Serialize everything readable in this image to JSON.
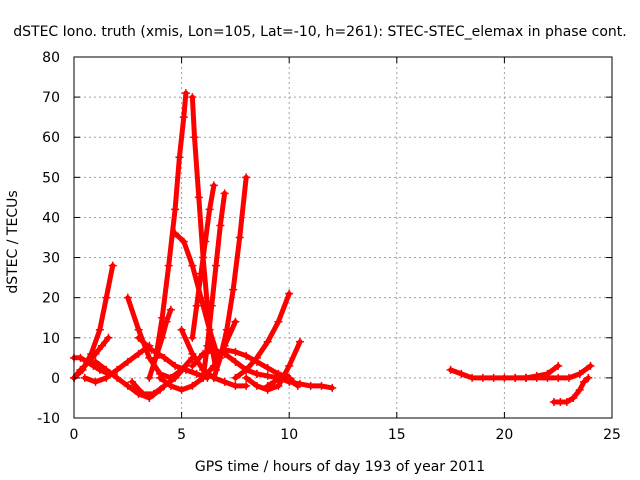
{
  "chart_data": {
    "type": "scatter",
    "title": "dSTEC Iono. truth (xmis, Lon=105, Lat=-10, h=261): STEC-STEC_elemax in phase cont.",
    "xlabel": "GPS time / hours of day 193 of year 2011",
    "ylabel": "dSTEC  / TECUs",
    "xlim": [
      0,
      25
    ],
    "ylim": [
      -10,
      80
    ],
    "x_ticks": [
      0,
      5,
      10,
      15,
      20,
      25
    ],
    "y_ticks": [
      -10,
      0,
      10,
      20,
      30,
      40,
      50,
      60,
      70,
      80
    ],
    "grid": true,
    "marker": "plus",
    "color": "#ff0000",
    "series": [
      {
        "x": [
          0.0,
          0.4,
          0.8,
          1.2,
          1.5,
          1.8
        ],
        "y": [
          0,
          2,
          6,
          12,
          20,
          28
        ]
      },
      {
        "x": [
          0.0,
          0.3,
          0.6,
          0.9,
          1.2,
          1.6
        ],
        "y": [
          5,
          5,
          4,
          3,
          2,
          1
        ]
      },
      {
        "x": [
          0.0,
          0.3,
          0.7,
          1.0,
          1.3,
          1.6
        ],
        "y": [
          0,
          2,
          4,
          6,
          8,
          10
        ]
      },
      {
        "x": [
          0.5,
          1.0,
          1.5,
          2.0,
          2.5,
          3.0,
          3.5
        ],
        "y": [
          0,
          -1,
          0,
          2,
          4,
          6,
          8
        ]
      },
      {
        "x": [
          2.5,
          3.0,
          3.5,
          4.0,
          4.5,
          5.0,
          5.5
        ],
        "y": [
          20,
          12,
          5,
          1,
          0,
          2,
          5
        ]
      },
      {
        "x": [
          2.7,
          3.2,
          3.7,
          4.2,
          4.7,
          5.2
        ],
        "y": [
          -1,
          -4,
          -4,
          -2,
          0,
          3
        ]
      },
      {
        "x": [
          1.0,
          1.5,
          2.0,
          2.5,
          3.0,
          3.5,
          4.0
        ],
        "y": [
          4,
          2,
          0,
          -2,
          -4,
          -5,
          -3
        ]
      },
      {
        "x": [
          3.0,
          3.6,
          4.2,
          4.7,
          5.2,
          5.7,
          6.2
        ],
        "y": [
          10,
          7,
          5,
          3,
          2,
          1,
          0
        ]
      },
      {
        "x": [
          3.5,
          3.8,
          4.1,
          4.3,
          4.5
        ],
        "y": [
          0,
          5,
          10,
          14,
          17
        ]
      },
      {
        "x": [
          3.8,
          4.1,
          4.4,
          4.7,
          4.9,
          5.1,
          5.2
        ],
        "y": [
          5,
          15,
          28,
          42,
          55,
          65,
          71
        ]
      },
      {
        "x": [
          4.7,
          5.1,
          5.5,
          5.9,
          6.3,
          6.7
        ],
        "y": [
          36,
          34,
          28,
          20,
          12,
          5
        ]
      },
      {
        "x": [
          5.5,
          5.6,
          5.8,
          6.0,
          6.2,
          6.4,
          6.6
        ],
        "y": [
          70,
          60,
          45,
          30,
          18,
          8,
          2
        ]
      },
      {
        "x": [
          5.5,
          5.7,
          5.9,
          6.1,
          6.3,
          6.5
        ],
        "y": [
          10,
          18,
          26,
          34,
          42,
          48
        ]
      },
      {
        "x": [
          6.0,
          6.2,
          6.4,
          6.6,
          6.8,
          7.0
        ],
        "y": [
          0,
          8,
          18,
          28,
          38,
          46
        ]
      },
      {
        "x": [
          6.5,
          6.8,
          7.1,
          7.4,
          7.7,
          8.0
        ],
        "y": [
          0,
          5,
          12,
          22,
          35,
          50
        ]
      },
      {
        "x": [
          4.0,
          4.5,
          5.0,
          5.5,
          6.0,
          6.5,
          7.0,
          7.5
        ],
        "y": [
          0,
          -2,
          -3,
          -2,
          0,
          3,
          8,
          14
        ]
      },
      {
        "x": [
          5.0,
          5.5,
          6.0,
          6.5,
          7.0,
          7.5,
          8.0
        ],
        "y": [
          12,
          6,
          2,
          0,
          -1,
          -2,
          -2
        ]
      },
      {
        "x": [
          5.5,
          6.0,
          6.5,
          7.0,
          7.5,
          8.0,
          8.5
        ],
        "y": [
          3,
          6,
          7,
          6,
          4,
          2,
          1
        ]
      },
      {
        "x": [
          7.0,
          7.5,
          8.0,
          8.5,
          9.0,
          9.5,
          10.0
        ],
        "y": [
          7,
          6.5,
          5.5,
          4,
          2.5,
          1,
          0
        ]
      },
      {
        "x": [
          7.5,
          8.0,
          8.5,
          9.0,
          9.5,
          10.0
        ],
        "y": [
          0,
          2,
          5,
          9,
          14,
          21
        ]
      },
      {
        "x": [
          8.0,
          8.5,
          9.0,
          9.5,
          10.0,
          10.5
        ],
        "y": [
          0,
          -2,
          -3,
          -2,
          3,
          9
        ]
      },
      {
        "x": [
          8.5,
          9.0,
          9.5,
          10.0,
          10.5,
          11.0,
          11.5,
          12.0
        ],
        "y": [
          1,
          0.5,
          0,
          -1,
          -1.5,
          -2,
          -2,
          -2.5
        ]
      },
      {
        "x": [
          9.0,
          9.3,
          9.6,
          9.9,
          10.2,
          10.4
        ],
        "y": [
          -2,
          -1,
          0.5,
          0.5,
          -1,
          -2
        ]
      },
      {
        "x": [
          17.5,
          18.0,
          18.5,
          19.0,
          19.5,
          20.0,
          20.5,
          21.0
        ],
        "y": [
          2,
          1,
          0,
          0,
          0,
          0,
          0,
          0
        ]
      },
      {
        "x": [
          20.5,
          21.0,
          21.5,
          22.0,
          22.5
        ],
        "y": [
          0,
          0,
          0.5,
          1,
          3
        ]
      },
      {
        "x": [
          21.0,
          21.5,
          22.0,
          22.5,
          23.0,
          23.5,
          24.0
        ],
        "y": [
          0,
          0,
          0,
          0,
          0,
          1,
          3
        ]
      },
      {
        "x": [
          22.3,
          22.6,
          22.9,
          23.2,
          23.5,
          23.7,
          23.9
        ],
        "y": [
          -6,
          -6,
          -6,
          -5,
          -3,
          -1,
          0
        ]
      }
    ]
  }
}
